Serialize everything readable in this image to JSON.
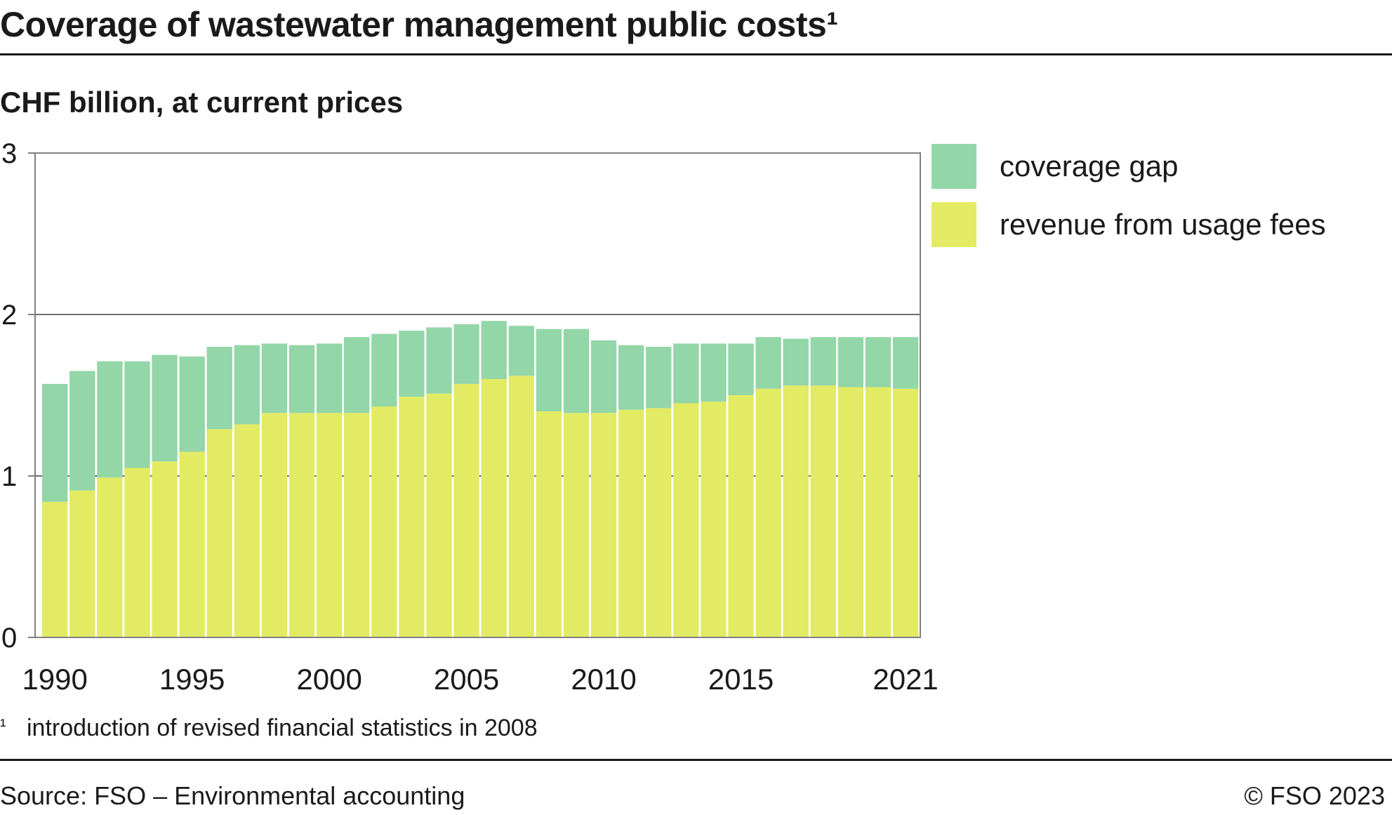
{
  "header": {
    "title": "Coverage of wastewater management public costs¹"
  },
  "footer": {
    "footnote_mark": "¹",
    "footnote_text": "introduction of revised financial statistics in 2008",
    "source": "Source: FSO – Environmental accounting",
    "copyright": "© FSO 2023"
  },
  "colors": {
    "coverage_gap": "#93d6a8",
    "revenue": "#e2eb63",
    "axis": "#808080",
    "text": "#1a1a1a"
  },
  "chart_data": {
    "type": "bar",
    "stacked": true,
    "title": "Coverage of wastewater management public costs¹",
    "subtitle": "CHF billion, at current prices",
    "categories": [
      1990,
      1991,
      1992,
      1993,
      1994,
      1995,
      1996,
      1997,
      1998,
      1999,
      2000,
      2001,
      2002,
      2003,
      2004,
      2005,
      2006,
      2007,
      2008,
      2009,
      2010,
      2011,
      2012,
      2013,
      2014,
      2015,
      2016,
      2017,
      2018,
      2019,
      2020,
      2021
    ],
    "x_tick_labels": [
      "1990",
      "1995",
      "2000",
      "2005",
      "2010",
      "2015",
      "2021"
    ],
    "y_ticks": [
      0,
      1,
      2,
      3
    ],
    "ylim": [
      0,
      3
    ],
    "grid": "horizontal",
    "legend_position": "right",
    "series": [
      {
        "name": "revenue from usage fees",
        "color": "#e2eb63",
        "values": [
          0.84,
          0.91,
          0.99,
          1.05,
          1.09,
          1.15,
          1.29,
          1.32,
          1.39,
          1.39,
          1.39,
          1.39,
          1.43,
          1.49,
          1.51,
          1.57,
          1.6,
          1.62,
          1.4,
          1.39,
          1.39,
          1.41,
          1.42,
          1.45,
          1.46,
          1.5,
          1.54,
          1.56,
          1.56,
          1.55,
          1.55,
          1.54
        ]
      },
      {
        "name": "coverage gap",
        "color": "#93d6a8",
        "values": [
          0.73,
          0.74,
          0.72,
          0.66,
          0.66,
          0.59,
          0.51,
          0.49,
          0.43,
          0.42,
          0.43,
          0.47,
          0.45,
          0.41,
          0.41,
          0.37,
          0.36,
          0.31,
          0.51,
          0.52,
          0.45,
          0.4,
          0.38,
          0.37,
          0.36,
          0.32,
          0.32,
          0.29,
          0.3,
          0.31,
          0.31,
          0.32
        ]
      }
    ],
    "legend_order": [
      "coverage gap",
      "revenue from usage fees"
    ]
  }
}
